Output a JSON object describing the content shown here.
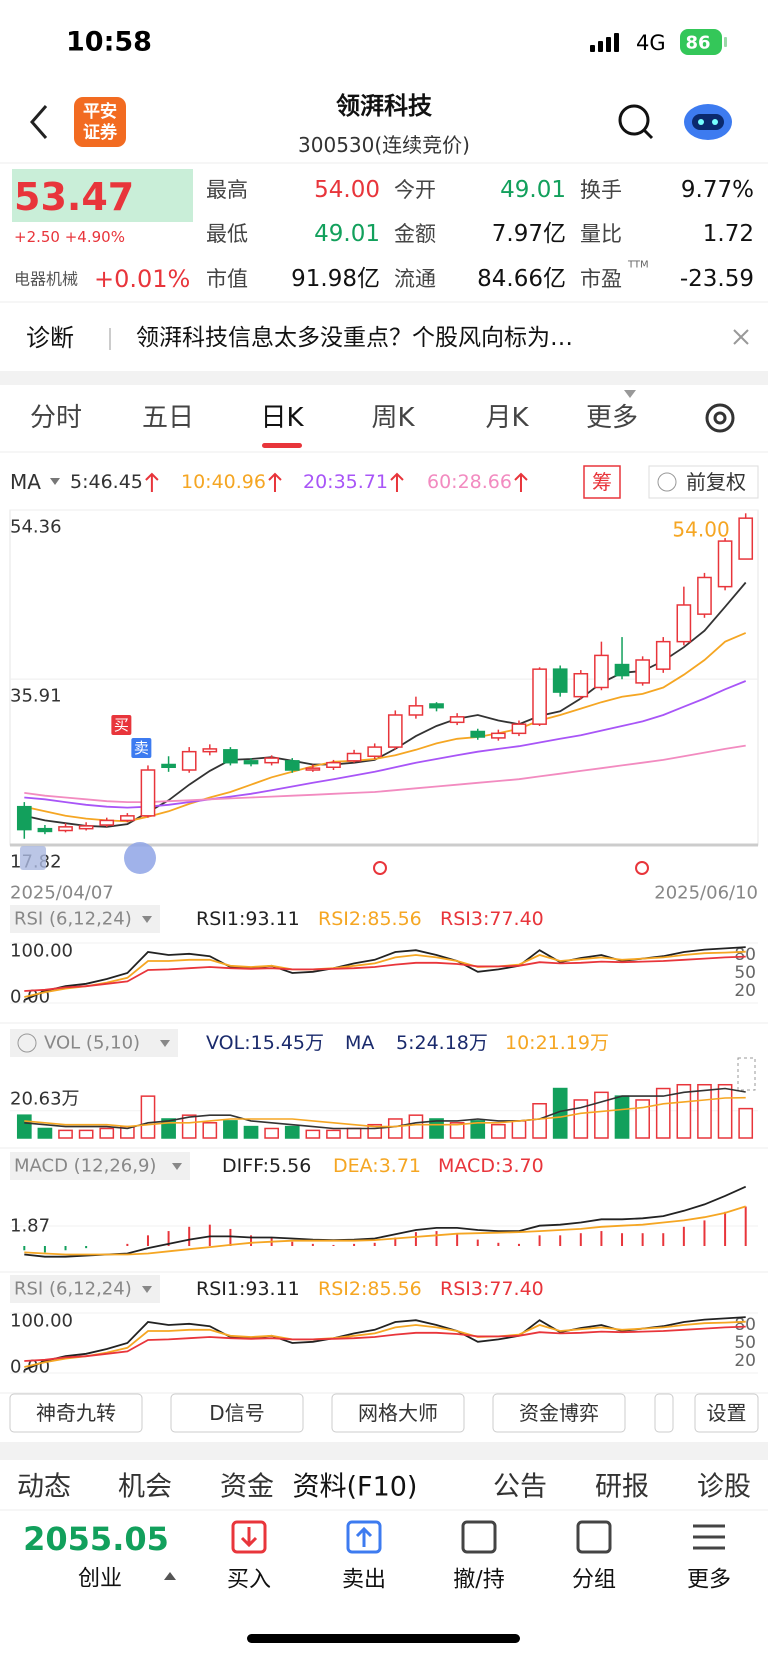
{
  "status_bar": {
    "time": "10:58",
    "network": "4G",
    "battery": "86"
  },
  "header": {
    "logo": [
      "平安",
      "证券"
    ],
    "name": "领湃科技",
    "code": "300530(连续竞价)"
  },
  "quote": {
    "price": "53.47",
    "change": "+2.50 +4.90%",
    "sector": "电器机械",
    "sector_change": "+0.01%",
    "fields": [
      {
        "label": "最高",
        "value": "54.00",
        "color": "#e8353b"
      },
      {
        "label": "今开",
        "value": "49.01",
        "color": "#12a05c"
      },
      {
        "label": "换手",
        "value": "9.77%"
      },
      {
        "label": "最低",
        "value": "49.01",
        "color": "#12a05c"
      },
      {
        "label": "金额",
        "value": "7.97亿"
      },
      {
        "label": "量比",
        "value": "1.72"
      },
      {
        "label": "市值",
        "value": "91.98亿"
      },
      {
        "label": "流通",
        "value": "84.66亿"
      },
      {
        "label": "市盈",
        "value": "-23.59",
        "sup": "TTM"
      }
    ]
  },
  "diagnosis": {
    "label": "诊断",
    "text": "领湃科技信息太多没重点？个股风向标为…"
  },
  "tabs": {
    "items": [
      "分时",
      "五日",
      "日K",
      "周K",
      "月K",
      "更多"
    ],
    "active": 2
  },
  "ma_legend": {
    "label": "MA",
    "items": [
      "5:46.45",
      "10:40.96",
      "20:35.71",
      "60:28.66"
    ],
    "chip": "筹",
    "adjust": "前复权"
  },
  "chart_data": [
    {
      "type": "candlestick",
      "open": [
        22,
        19.6,
        19.4,
        19.6,
        20,
        20.5,
        21,
        26.6,
        26,
        28,
        28.2,
        27,
        26.8,
        27,
        26,
        26.3,
        27,
        27.5,
        28.5,
        32,
        33.2,
        31.2,
        30.2,
        29.5,
        30,
        31,
        37,
        34,
        35,
        37.5,
        35.5,
        37,
        40,
        43,
        46,
        49.01
      ],
      "high": [
        22.5,
        20,
        20.2,
        20.3,
        20.8,
        21.3,
        26.5,
        27.5,
        28.5,
        28.8,
        28.5,
        27.3,
        27.6,
        27.3,
        26.6,
        27.1,
        28.2,
        28.9,
        32.5,
        34,
        33.4,
        32.2,
        30.5,
        30.4,
        31.4,
        37.2,
        37.4,
        36.9,
        40,
        40.5,
        38.4,
        40.5,
        46,
        47.5,
        51.3,
        54
      ],
      "low": [
        18.5,
        19,
        19.2,
        19.4,
        19.8,
        20.3,
        20.8,
        25.8,
        25.7,
        27.6,
        26.5,
        26.4,
        26.5,
        25.7,
        25.8,
        26,
        26.8,
        27.2,
        28.2,
        31.6,
        32.4,
        30.9,
        29.3,
        29.2,
        29.7,
        30.8,
        34,
        33.7,
        34.7,
        35.9,
        35.2,
        36.6,
        39.6,
        42.6,
        45.6,
        49.01
      ],
      "close": [
        19.5,
        19.3,
        19.8,
        19.9,
        20.5,
        21,
        26,
        26.3,
        28,
        28.3,
        26.8,
        26.7,
        27.3,
        26,
        26.2,
        26.8,
        27.8,
        28.5,
        32,
        33,
        32.8,
        31.8,
        29.6,
        30,
        31,
        37,
        34.5,
        36.5,
        38.5,
        36.3,
        38,
        40,
        44,
        47,
        50.97,
        53.47
      ],
      "series": [
        {
          "color": "#333333",
          "values": [
            21,
            20.5,
            20.2,
            19.9,
            19.8,
            20.1,
            21.4,
            22.7,
            24.4,
            25.9,
            27.1,
            27.2,
            27.4,
            27,
            26.6,
            26.6,
            26.8,
            27.1,
            28.3,
            29.7,
            30.8,
            31.6,
            32,
            31.4,
            31,
            31.9,
            32.4,
            33.8,
            35.5,
            36.6,
            36.8,
            37.9,
            39.4,
            41.2,
            43.8,
            46.45
          ]
        },
        {
          "color": "#f5a623",
          "values": [
            22,
            21.5,
            21,
            20.7,
            20.5,
            20.4,
            20.9,
            21.5,
            22.3,
            23,
            23.6,
            24.4,
            25.2,
            25.8,
            26.4,
            26.9,
            27,
            27.2,
            27.6,
            28.2,
            28.9,
            29.4,
            29.6,
            30,
            30.5,
            31.4,
            32,
            32.7,
            33.4,
            34,
            34.3,
            35,
            36.4,
            38,
            40,
            40.96
          ]
        },
        {
          "color": "#a855f7",
          "values": [
            23,
            22.8,
            22.5,
            22.2,
            22,
            21.9,
            22,
            22.2,
            22.5,
            22.8,
            23.1,
            23.4,
            23.8,
            24.2,
            24.6,
            25,
            25.4,
            25.8,
            26.3,
            26.8,
            27.2,
            27.6,
            28,
            28.3,
            28.6,
            29,
            29.4,
            29.8,
            30.3,
            30.8,
            31.3,
            32,
            32.9,
            33.8,
            34.8,
            35.71
          ]
        },
        {
          "color": "#f28bc0",
          "values": [
            23.5,
            23.2,
            23,
            22.8,
            22.6,
            22.5,
            22.5,
            22.6,
            22.7,
            22.8,
            22.9,
            23,
            23.1,
            23.2,
            23.3,
            23.4,
            23.5,
            23.6,
            23.8,
            24,
            24.2,
            24.4,
            24.6,
            24.8,
            25,
            25.3,
            25.6,
            25.9,
            26.2,
            26.5,
            26.8,
            27.1,
            27.5,
            27.9,
            28.3,
            28.66
          ]
        }
      ],
      "up_color": "#e8353b",
      "down_color": "#12a05c",
      "ylim": [
        17.82,
        54.36
      ],
      "yticks": [
        54.36,
        35.91,
        17.82
      ],
      "x_labels": [
        "2025/04/07",
        "2025/06/10"
      ],
      "annotations": [
        {
          "value": 54,
          "label": "54.00"
        }
      ],
      "signals": [
        "买",
        "卖"
      ]
    },
    {
      "type": "line",
      "title": "RSI (6,12,24)",
      "legend": [
        "RSI1:93.11",
        "RSI2:85.56",
        "RSI3:77.40"
      ],
      "series": [
        {
          "color": "#222222",
          "values": [
            5,
            20,
            28,
            32,
            40,
            50,
            85,
            80,
            82,
            78,
            60,
            58,
            62,
            50,
            52,
            58,
            66,
            72,
            85,
            88,
            80,
            70,
            52,
            56,
            62,
            88,
            68,
            75,
            80,
            70,
            74,
            78,
            85,
            89,
            91,
            93.11
          ]
        },
        {
          "color": "#f5a623",
          "values": [
            10,
            18,
            24,
            28,
            34,
            42,
            70,
            70,
            72,
            72,
            62,
            60,
            62,
            56,
            56,
            58,
            62,
            66,
            76,
            80,
            76,
            70,
            60,
            61,
            64,
            80,
            70,
            73,
            76,
            72,
            74,
            76,
            80,
            83,
            84,
            85.56
          ]
        },
        {
          "color": "#e8353b",
          "values": [
            20,
            22,
            26,
            28,
            32,
            36,
            55,
            56,
            58,
            60,
            58,
            57,
            58,
            56,
            56,
            57,
            58,
            60,
            64,
            67,
            67,
            65,
            61,
            61,
            62,
            68,
            66,
            67,
            69,
            68,
            69,
            70,
            72,
            74,
            76,
            77.4
          ]
        }
      ],
      "ylim": [
        0,
        100
      ],
      "yticks": [
        {
          "value": 100,
          "label": "100.00"
        },
        {
          "value": 0,
          "label": "0.00"
        }
      ],
      "y2ticks": [
        80,
        50,
        20
      ]
    },
    {
      "type": "bar",
      "title": "VOL (5,10)",
      "legend": [
        "VOL:15.45万",
        "MA",
        "5:24.18万",
        "10:21.19万"
      ],
      "values": [
        12,
        5,
        4,
        4,
        5,
        6,
        22,
        10,
        12,
        8,
        9,
        6,
        5,
        6,
        4,
        4,
        5,
        7,
        10,
        12,
        10,
        8,
        9,
        7,
        9,
        18,
        26,
        20,
        24,
        22,
        20,
        26,
        28,
        28,
        28,
        15.45
      ],
      "series": [
        {
          "color": "#333333",
          "values": [
            8,
            7,
            6,
            6,
            6,
            5,
            8,
            9,
            11,
            12,
            12,
            9,
            8,
            7,
            6,
            5,
            5,
            5,
            6,
            8,
            9,
            9,
            10,
            9,
            9,
            10,
            14,
            16,
            19,
            22,
            22,
            22,
            24,
            25,
            26,
            24.18
          ]
        },
        {
          "color": "#f5a623",
          "values": [
            9,
            8,
            7,
            7,
            7,
            6,
            7,
            8,
            8,
            9,
            10,
            10,
            10,
            10,
            9,
            8,
            7,
            6,
            6,
            7,
            7,
            7,
            8,
            8,
            9,
            10,
            11,
            13,
            14,
            15,
            16,
            18,
            19,
            20,
            21,
            21.19
          ]
        }
      ],
      "ylim": [
        0,
        41
      ],
      "yticks": [
        {
          "value": 20.63,
          "label": "20.63万"
        }
      ]
    },
    {
      "type": "macd",
      "title": "MACD (12,26,9)",
      "legend": [
        "DIFF:5.56",
        "DEA:3.71",
        "MACD:3.70"
      ],
      "series": [
        {
          "color": "#222222",
          "values": [
            -0.8,
            -1,
            -1,
            -0.9,
            -0.8,
            -0.7,
            -0.2,
            0.2,
            0.6,
            0.9,
            0.9,
            0.8,
            0.8,
            0.7,
            0.6,
            0.55,
            0.6,
            0.7,
            1.1,
            1.5,
            1.7,
            1.7,
            1.5,
            1.4,
            1.4,
            1.9,
            2.0,
            2.2,
            2.5,
            2.5,
            2.6,
            2.8,
            3.3,
            3.9,
            4.7,
            5.56
          ]
        },
        {
          "color": "#f5a623",
          "values": [
            -0.6,
            -0.7,
            -0.8,
            -0.8,
            -0.8,
            -0.8,
            -0.7,
            -0.5,
            -0.3,
            -0.1,
            0.1,
            0.3,
            0.4,
            0.5,
            0.5,
            0.5,
            0.5,
            0.55,
            0.7,
            0.85,
            1.0,
            1.15,
            1.2,
            1.25,
            1.3,
            1.4,
            1.5,
            1.6,
            1.8,
            1.9,
            2.0,
            2.2,
            2.4,
            2.7,
            3.1,
            3.71
          ]
        }
      ],
      "values": [
        -0.4,
        -0.6,
        -0.4,
        -0.2,
        0,
        0.2,
        1.0,
        1.4,
        1.8,
        2.0,
        1.6,
        1.0,
        0.8,
        0.4,
        0.2,
        0.1,
        0.2,
        0.3,
        0.8,
        1.3,
        1.4,
        1.1,
        0.6,
        0.3,
        0.2,
        1.0,
        1.0,
        1.2,
        1.4,
        1.2,
        1.2,
        1.2,
        1.8,
        2.4,
        3.2,
        3.7
      ],
      "ylim": [
        -1.5,
        6
      ],
      "yticks": [
        1.87
      ]
    }
  ],
  "tools": [
    "神奇九转",
    "D信号",
    "网格大师",
    "资金博弈",
    "设置"
  ],
  "sections": [
    "动态",
    "机会",
    "资金",
    "资料(F10)",
    "公告",
    "研报",
    "诊股"
  ],
  "index": {
    "value": "2055.05",
    "name": "创业"
  },
  "actions": [
    "买入",
    "卖出",
    "撤/持",
    "分组",
    "更多"
  ]
}
